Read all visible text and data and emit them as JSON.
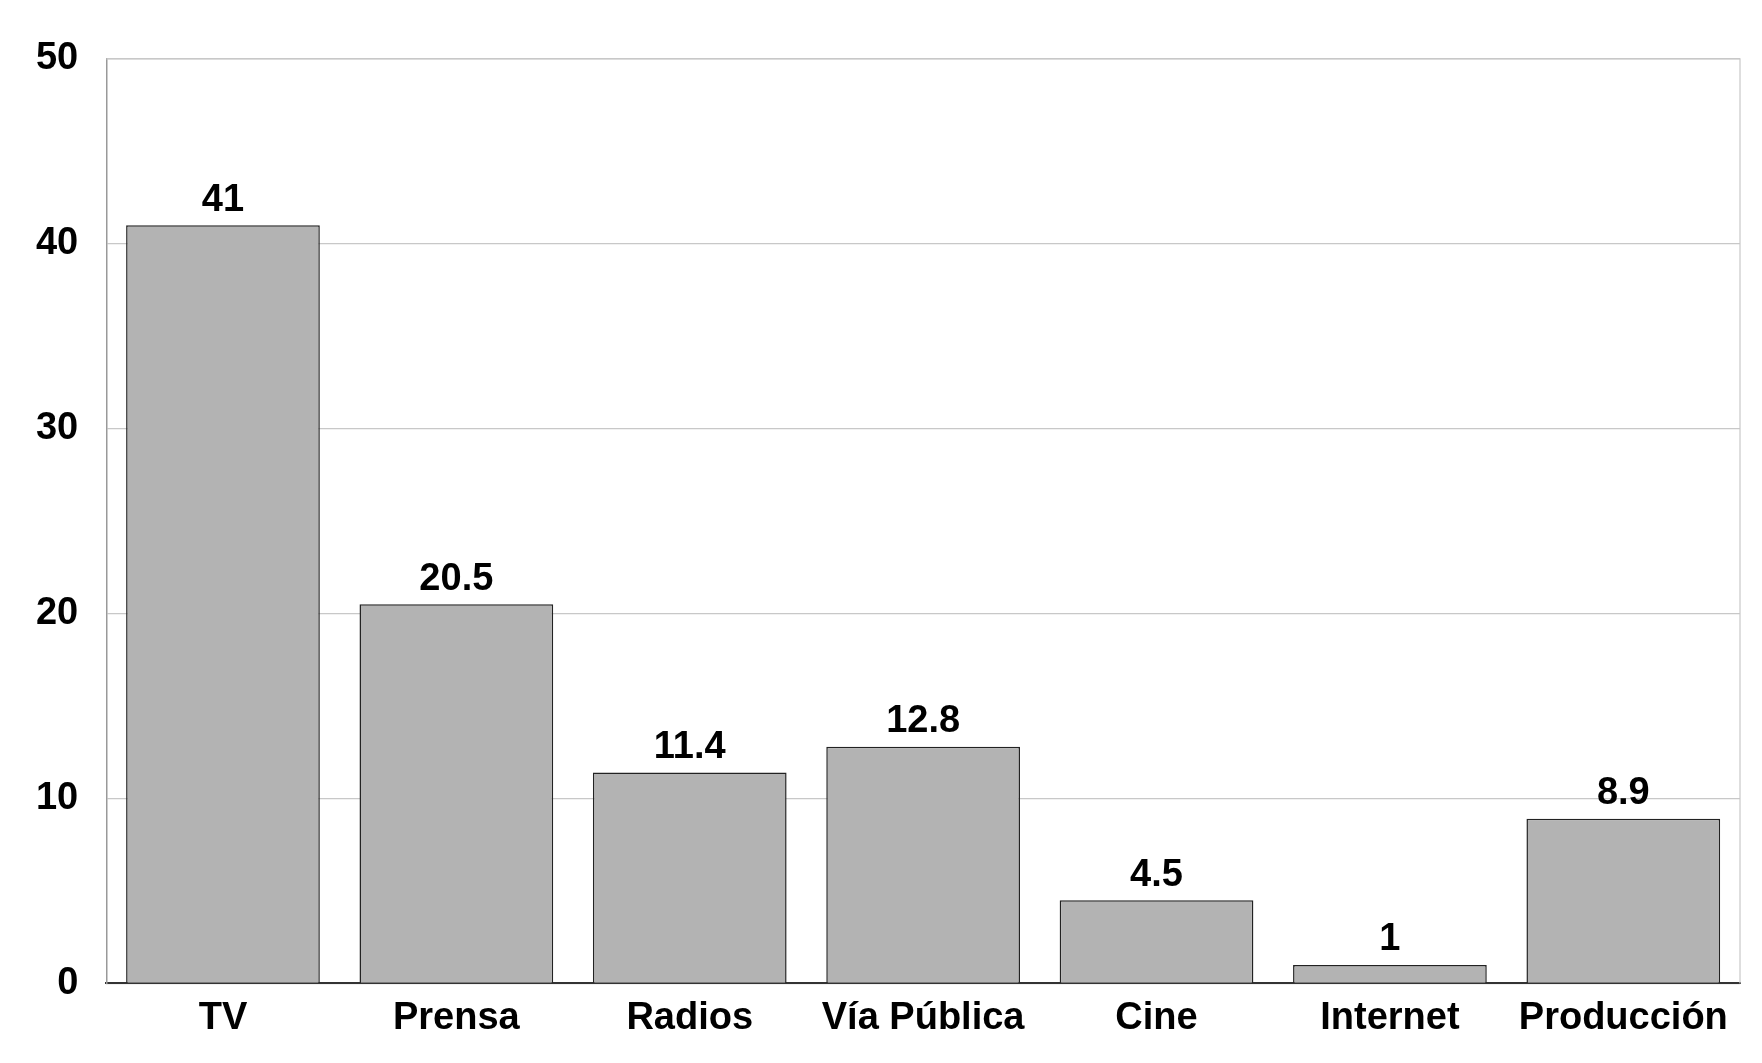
{
  "chart_data": {
    "type": "bar",
    "categories": [
      "TV",
      "Prensa",
      "Radios",
      "Vía Pública",
      "Cine",
      "Internet",
      "Producción"
    ],
    "values": [
      41,
      20.5,
      11.4,
      12.8,
      4.5,
      1,
      8.9
    ],
    "color": "#b3b3b3",
    "ylim": [
      0,
      50
    ],
    "yticks": [
      0,
      10,
      20,
      30,
      40,
      50
    ],
    "grid": "y",
    "data_labels": true,
    "legend": false
  }
}
